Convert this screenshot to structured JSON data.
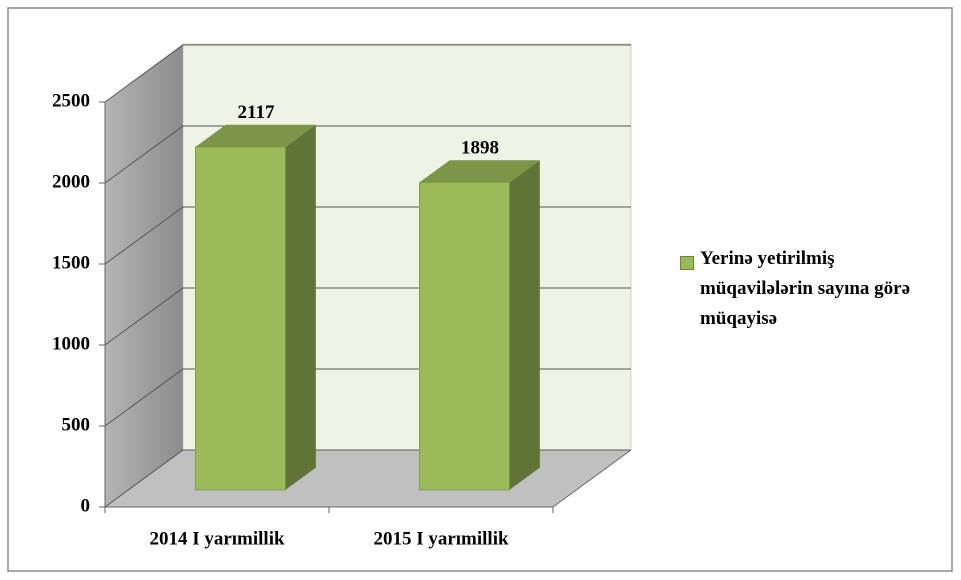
{
  "chart_data": {
    "type": "bar",
    "categories": [
      "2014 I yarımillik",
      "2015 I yarımillik"
    ],
    "series": [
      {
        "name": "Yerinə yetirilmiş müqavilələrin sayına görə müqayisə",
        "color": "#9bbb59",
        "values": [
          2117,
          1898
        ]
      }
    ],
    "ylim": [
      0,
      2500
    ],
    "yticks": [
      0,
      500,
      1000,
      1500,
      2000,
      2500
    ],
    "grid": true,
    "legend": "right"
  }
}
